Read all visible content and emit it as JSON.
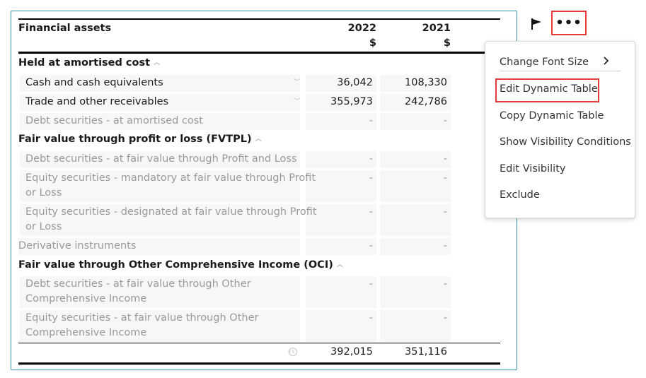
{
  "table": {
    "header": {
      "label": "Financial assets",
      "col1_year": "2022",
      "col1_unit": "$",
      "col2_year": "2021",
      "col2_unit": "$"
    },
    "rows": [
      {
        "type": "section",
        "label": "Held at amortised cost"
      },
      {
        "type": "item",
        "label": "Cash and cash equivalents",
        "v2022": "36,042",
        "v2021": "108,330",
        "muted": false
      },
      {
        "type": "item",
        "label": "Trade and other receivables",
        "v2022": "355,973",
        "v2021": "242,786",
        "muted": false
      },
      {
        "type": "item",
        "label": "Debt securities - at amortised cost",
        "v2022": "-",
        "v2021": "-",
        "muted": true
      },
      {
        "type": "section",
        "label": "Fair value through profit or loss (FVTPL)"
      },
      {
        "type": "item",
        "label": "Debt securities - at fair value through Profit and Loss",
        "v2022": "-",
        "v2021": "-",
        "muted": true
      },
      {
        "type": "item",
        "label": "Equity securities - mandatory at fair value through Profit",
        "label2": "or Loss",
        "v2022": "-",
        "v2021": "-",
        "muted": true
      },
      {
        "type": "item",
        "label": "Equity securities - designated at fair value through Profit",
        "label2": "or Loss",
        "v2022": "-",
        "v2021": "-",
        "muted": true
      },
      {
        "type": "item",
        "label": "Derivative instruments",
        "v2022": "-",
        "v2021": "-",
        "muted": true
      },
      {
        "type": "section",
        "label": "Fair value through Other Comprehensive Income (OCI)"
      },
      {
        "type": "item",
        "label": "Debt securities - at fair value through Other",
        "label2": "Comprehensive Income",
        "v2022": "-",
        "v2021": "-",
        "muted": true
      },
      {
        "type": "item",
        "label": "Equity securities - at fair value through Other",
        "label2": "Comprehensive Income",
        "v2022": "-",
        "v2021": "-",
        "muted": true
      }
    ],
    "total": {
      "v2022": "392,015",
      "v2021": "351,116"
    }
  },
  "toolbar": {
    "flag_icon": "flag-icon",
    "more_label": "•••"
  },
  "menu": {
    "items": [
      {
        "label": "Change Font Size"
      },
      {
        "label": "Edit Dynamic Table"
      },
      {
        "label": "Copy Dynamic Table"
      },
      {
        "label": "Show Visibility Conditions"
      },
      {
        "label": "Edit Visibility"
      },
      {
        "label": "Exclude"
      }
    ]
  },
  "colors": {
    "highlight": "#e53b3b",
    "panel_border": "#3b8fa6",
    "muted_text": "#9a9a9a"
  }
}
